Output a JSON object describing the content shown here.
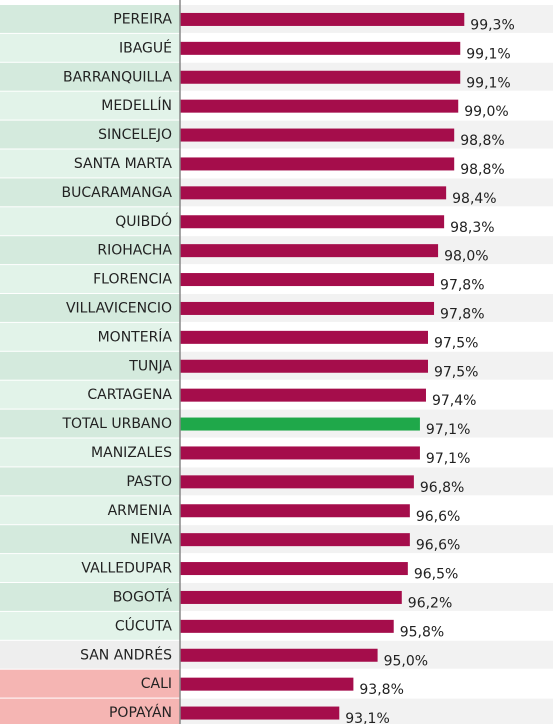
{
  "chart_data": {
    "type": "barh",
    "categories": [
      "PEREIRA",
      "IBAGUÉ",
      "BARRANQUILLA",
      "MEDELLÍN",
      "SINCELEJO",
      "SANTA MARTA",
      "BUCARAMANGA",
      "QUIBDÓ",
      "RIOHACHA",
      "FLORENCIA",
      "VILLAVICENCIO",
      "MONTERÍA",
      "TUNJA",
      "CARTAGENA",
      "TOTAL URBANO",
      "MANIZALES",
      "PASTO",
      "ARMENIA",
      "NEIVA",
      "VALLEDUPAR",
      "BOGOTÁ",
      "CÚCUTA",
      "SAN ANDRÉS",
      "CALI",
      "POPAYÁN"
    ],
    "values": [
      99.3,
      99.1,
      99.1,
      99.0,
      98.8,
      98.8,
      98.4,
      98.3,
      98.0,
      97.8,
      97.8,
      97.5,
      97.5,
      97.4,
      97.1,
      97.1,
      96.8,
      96.6,
      96.6,
      96.5,
      96.2,
      95.8,
      95.0,
      93.8,
      93.1
    ],
    "value_labels": [
      "99,3%",
      "99,1%",
      "99,1%",
      "99,0%",
      "98,8%",
      "98,8%",
      "98,4%",
      "98,3%",
      "98,0%",
      "97,8%",
      "97,8%",
      "97,5%",
      "97,5%",
      "97,4%",
      "97,1%",
      "97,1%",
      "96,8%",
      "96,6%",
      "96,6%",
      "96,5%",
      "96,2%",
      "95,8%",
      "95,0%",
      "93,8%",
      "93,1%"
    ],
    "colors": [
      "#a50d4b",
      "#a50d4b",
      "#a50d4b",
      "#a50d4b",
      "#a50d4b",
      "#a50d4b",
      "#a50d4b",
      "#a50d4b",
      "#a50d4b",
      "#a50d4b",
      "#a50d4b",
      "#a50d4b",
      "#a50d4b",
      "#a50d4b",
      "#1fa84a",
      "#a50d4b",
      "#a50d4b",
      "#a50d4b",
      "#a50d4b",
      "#a50d4b",
      "#a50d4b",
      "#a50d4b",
      "#a50d4b",
      "#a50d4b",
      "#a50d4b"
    ],
    "label_backgrounds": [
      "#d4eadd",
      "#e2f3e9",
      "#d4eadd",
      "#e2f3e9",
      "#d4eadd",
      "#e2f3e9",
      "#d4eadd",
      "#e2f3e9",
      "#d4eadd",
      "#e2f3e9",
      "#d4eadd",
      "#e2f3e9",
      "#d4eadd",
      "#e2f3e9",
      "#d4eadd",
      "#e2f3e9",
      "#d4eadd",
      "#e2f3e9",
      "#d4eadd",
      "#e2f3e9",
      "#d4eadd",
      "#e2f3e9",
      "#eeeeee",
      "#f5b5b3",
      "#f5b5b3"
    ],
    "xlim": [
      85.2,
      103.7
    ]
  }
}
